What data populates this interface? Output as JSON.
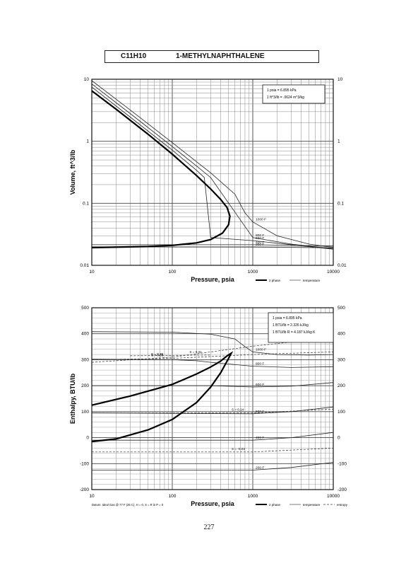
{
  "header": {
    "formula": "C11H10",
    "compound": "1-METHYLNAPHTHALENE"
  },
  "page_number": "227",
  "chart_data": [
    {
      "type": "line",
      "xscale": "log",
      "yscale": "log",
      "xlim": [
        10,
        10000
      ],
      "ylim": [
        0.01,
        10
      ],
      "xlabel": "Pressure,  psia",
      "ylabel": "Volume, ft^3/lb",
      "x_ticks": [
        "10",
        "100",
        "1000",
        "10000"
      ],
      "y_ticks": [
        "0.01",
        "0.1",
        "1",
        "10"
      ],
      "grid": true,
      "notes": [
        "1 psia  =  6.895 kPa",
        "1 ft^3/lb  =  .0624 m^3/kg"
      ],
      "legend": [
        "2 phase",
        "temperature"
      ],
      "two_phase": [
        [
          10,
          6.5
        ],
        [
          20,
          3.3
        ],
        [
          50,
          1.3
        ],
        [
          100,
          0.62
        ],
        [
          200,
          0.28
        ],
        [
          300,
          0.17
        ],
        [
          400,
          0.115
        ],
        [
          480,
          0.085
        ],
        [
          520,
          0.062
        ],
        [
          500,
          0.045
        ],
        [
          420,
          0.033
        ],
        [
          300,
          0.026
        ],
        [
          200,
          0.023
        ],
        [
          100,
          0.021
        ],
        [
          50,
          0.0201
        ],
        [
          10,
          0.0193
        ]
      ],
      "isotherms": [
        {
          "label": "1000 F",
          "points": [
            [
              10,
              9.5
            ],
            [
              30,
              3.2
            ],
            [
              100,
              0.95
            ],
            [
              300,
              0.31
            ],
            [
              600,
              0.14
            ],
            [
              800,
              0.07
            ],
            [
              1000,
              0.05
            ],
            [
              2000,
              0.03
            ],
            [
              5000,
              0.022
            ],
            [
              10000,
              0.0195
            ]
          ]
        },
        {
          "label": "800 F",
          "points": [
            [
              10,
              8.4
            ],
            [
              30,
              2.8
            ],
            [
              100,
              0.82
            ],
            [
              200,
              0.4
            ],
            [
              300,
              0.26
            ],
            [
              1000,
              0.028
            ],
            [
              3000,
              0.022
            ],
            [
              10000,
              0.0185
            ]
          ]
        },
        {
          "label": "600 F",
          "points": [
            [
              10,
              7.5
            ],
            [
              30,
              2.45
            ],
            [
              100,
              0.72
            ],
            [
              200,
              0.34
            ],
            [
              250,
              0.26
            ],
            [
              300,
              0.028
            ],
            [
              1000,
              0.025
            ],
            [
              10000,
              0.0182
            ]
          ]
        },
        {
          "label": "400 F",
          "points": [
            [
              10,
              0.0215
            ],
            [
              1000,
              0.0215
            ],
            [
              10000,
              0.0205
            ]
          ]
        },
        {
          "label": "200 F",
          "points": [
            [
              10,
              0.0198
            ],
            [
              1000,
              0.0197
            ],
            [
              10000,
              0.0192
            ]
          ]
        }
      ]
    },
    {
      "type": "line",
      "xscale": "log",
      "xlim": [
        10,
        10000
      ],
      "ylim": [
        -200,
        500
      ],
      "xlabel": "Pressure,  psia",
      "ylabel": "Enthalpy, BTU/lb",
      "x_ticks": [
        "10",
        "100",
        "1000",
        "10000"
      ],
      "y_ticks": [
        "-200",
        "-100",
        "0",
        "100",
        "200",
        "300",
        "400",
        "500"
      ],
      "grid": true,
      "notes": [
        "1 psia  =  6.895 kPa",
        "1 BTU/lb  =  2.326 kJ/kg",
        "1 BTU/lb R  =  4.187 kJ/kg K"
      ],
      "legend": [
        "2 phase",
        "temperature",
        "entropy"
      ],
      "footnote": "Datum: Ideal Gas @ 77 F (25 C),  H = 0,  S = R ln P = 0",
      "two_phase": [
        [
          10,
          125
        ],
        [
          30,
          160
        ],
        [
          100,
          205
        ],
        [
          200,
          245
        ],
        [
          300,
          272
        ],
        [
          400,
          295
        ],
        [
          480,
          315
        ],
        [
          540,
          325
        ],
        [
          500,
          305
        ],
        [
          400,
          250
        ],
        [
          300,
          195
        ],
        [
          200,
          135
        ],
        [
          100,
          70
        ],
        [
          50,
          30
        ],
        [
          20,
          -5
        ],
        [
          10,
          -15
        ]
      ],
      "isotherms": [
        {
          "label": "1000 F",
          "points": [
            [
              10,
              408
            ],
            [
              100,
              406
            ],
            [
              300,
              398
            ],
            [
              600,
              380
            ],
            [
              800,
              350
            ],
            [
              1000,
              330
            ],
            [
              2000,
              320
            ],
            [
              5000,
              318
            ],
            [
              10000,
              320
            ]
          ]
        },
        {
          "label": "800 F",
          "points": [
            [
              10,
              302
            ],
            [
              100,
              300
            ],
            [
              200,
              296
            ],
            [
              300,
              290
            ],
            [
              1000,
              275
            ],
            [
              3000,
              270
            ],
            [
              10000,
              273
            ]
          ]
        },
        {
          "label": "600 F",
          "points": [
            [
              10,
              200
            ],
            [
              300,
              200
            ],
            [
              1000,
              195
            ],
            [
              3000,
              198
            ],
            [
              10000,
              212
            ]
          ]
        },
        {
          "label": "500 F",
          "points": [
            [
              10,
              95
            ],
            [
              1000,
              92
            ],
            [
              3000,
              100
            ],
            [
              10000,
              118
            ]
          ]
        },
        {
          "label": "400 F",
          "points": [
            [
              10,
              -10
            ],
            [
              1000,
              -10
            ],
            [
              3000,
              0
            ],
            [
              10000,
              20
            ]
          ]
        },
        {
          "label": "200 F",
          "points": [
            [
              10,
              -125
            ],
            [
              1000,
              -125
            ],
            [
              3000,
              -115
            ],
            [
              10000,
              -95
            ]
          ]
        }
      ],
      "entropy_lines": [
        {
          "label": "S = 0.45",
          "points": [
            [
              10,
              290
            ],
            [
              100,
              310
            ],
            [
              300,
              330
            ],
            [
              1000,
              352
            ],
            [
              10000,
              385
            ]
          ]
        },
        {
          "label": "S = 0.35",
          "points": [
            [
              10,
              300
            ],
            [
              100,
              305
            ],
            [
              1000,
              320
            ],
            [
              10000,
              330
            ]
          ]
        },
        {
          "label": "S = 0.31",
          "points": [
            [
              30,
              315
            ],
            [
              300,
              318
            ]
          ]
        },
        {
          "label": "S = 0.14",
          "points": [
            [
              10,
              95
            ],
            [
              1000,
              95
            ],
            [
              10000,
              110
            ]
          ]
        },
        {
          "label": "S = -0.03",
          "points": [
            [
              10,
              -55
            ],
            [
              1000,
              -55
            ],
            [
              10000,
              -40
            ]
          ]
        }
      ]
    }
  ]
}
